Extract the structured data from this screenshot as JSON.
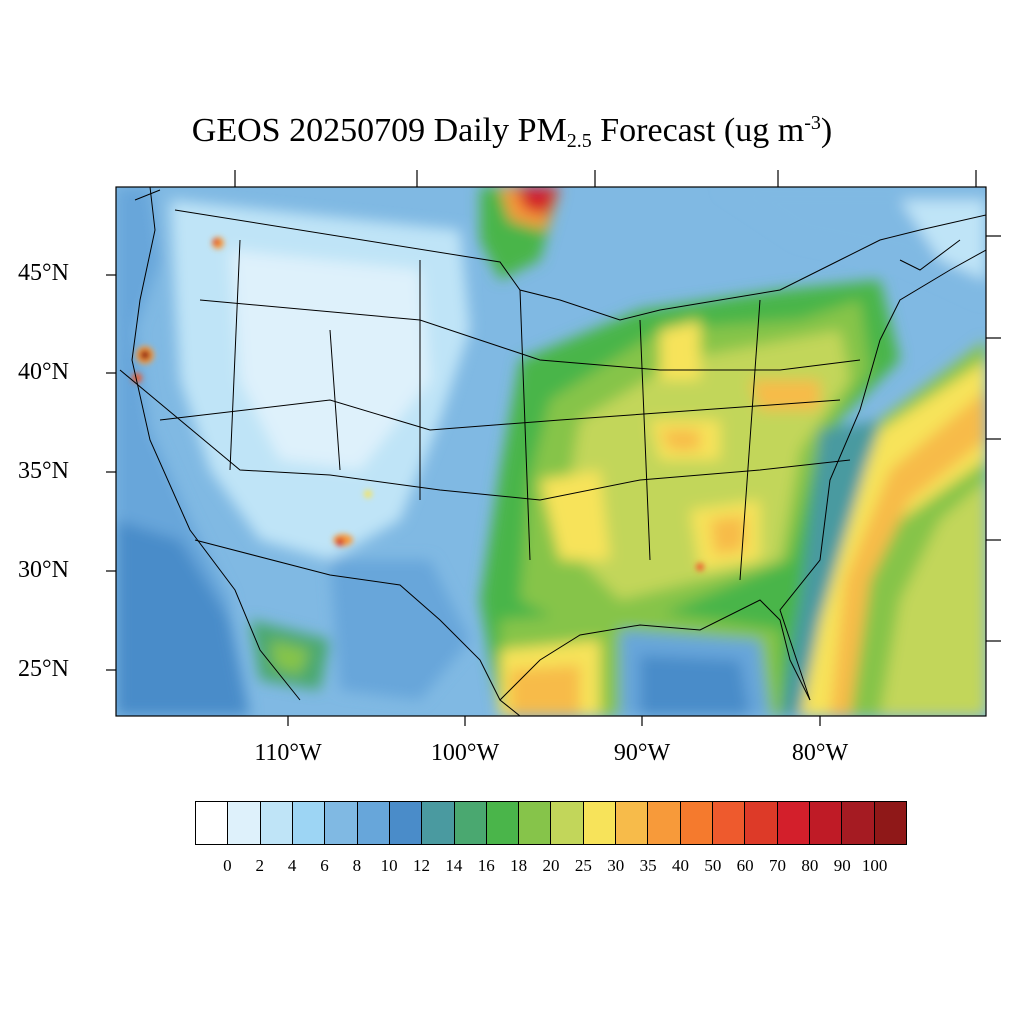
{
  "title": {
    "prefix": "GEOS 20250709 Daily PM",
    "subscript": "2.5",
    "middle": " Forecast (ug m",
    "superscript": "-3",
    "suffix": ")"
  },
  "map": {
    "region": "Contiguous United States",
    "lat_labels": [
      "45°N",
      "40°N",
      "35°N",
      "30°N",
      "25°N"
    ],
    "lon_labels": [
      "110°W",
      "100°W",
      "90°W",
      "80°W"
    ]
  },
  "colorbar": {
    "colors": [
      "#ffffff",
      "#def1fb",
      "#bfe4f7",
      "#9dd5f4",
      "#80b9e3",
      "#67a6da",
      "#4a8cc9",
      "#4a9aa0",
      "#4aa870",
      "#4ab54a",
      "#86c44a",
      "#c2d65a",
      "#f7e35a",
      "#f7bb4a",
      "#f79a3a",
      "#f57a2d",
      "#ee5a2d",
      "#dd3a28",
      "#d31f2b",
      "#bf1b26",
      "#a51b22",
      "#8f1818"
    ],
    "tick_labels": [
      "0",
      "2",
      "4",
      "6",
      "8",
      "10",
      "12",
      "14",
      "16",
      "18",
      "20",
      "25",
      "30",
      "35",
      "40",
      "50",
      "60",
      "70",
      "80",
      "90",
      "100"
    ]
  }
}
